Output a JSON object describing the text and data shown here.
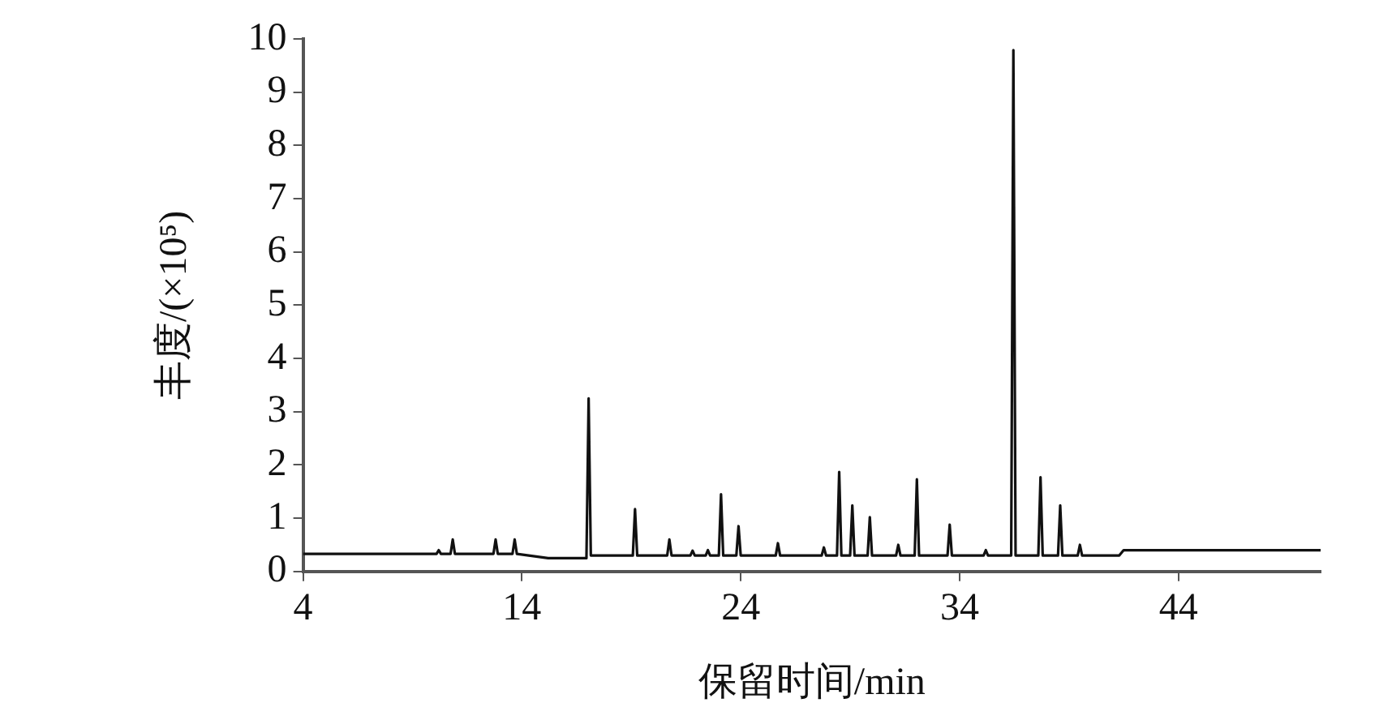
{
  "chart_data": {
    "type": "line",
    "xlabel": "保留时间/min",
    "ylabel": "丰度/(×10⁵)",
    "series": [
      {
        "color": "#111111",
        "x": [
          4,
          10.1,
          10.2,
          10.3,
          10.74,
          10.84,
          10.94,
          12.7,
          12.8,
          12.9,
          13.57,
          13.67,
          13.77,
          15.2,
          16.95,
          17.05,
          17.15,
          19.07,
          19.17,
          19.27,
          20.64,
          20.74,
          20.84,
          21.7,
          21.8,
          21.9,
          22.4,
          22.5,
          22.6,
          23.0,
          23.1,
          23.2,
          23.8,
          23.9,
          24.0,
          25.6,
          25.7,
          25.8,
          27.7,
          27.8,
          27.9,
          28.4,
          28.5,
          28.6,
          29.0,
          29.1,
          29.2,
          29.8,
          29.9,
          30.0,
          31.1,
          31.2,
          31.3,
          31.95,
          32.05,
          32.15,
          33.45,
          33.55,
          33.65,
          35.1,
          35.2,
          35.3,
          36.36,
          36.46,
          36.56,
          37.6,
          37.7,
          37.8,
          38.5,
          38.6,
          38.7,
          39.4,
          39.5,
          39.6,
          41.3,
          41.5,
          50.5
        ],
        "values": [
          0.33,
          0.33,
          0.4,
          0.33,
          0.33,
          0.6,
          0.33,
          0.33,
          0.6,
          0.33,
          0.33,
          0.6,
          0.33,
          0.25,
          0.25,
          3.25,
          0.3,
          0.3,
          1.17,
          0.3,
          0.3,
          0.6,
          0.3,
          0.3,
          0.39,
          0.3,
          0.3,
          0.4,
          0.3,
          0.3,
          1.45,
          0.3,
          0.3,
          0.85,
          0.3,
          0.3,
          0.53,
          0.3,
          0.3,
          0.45,
          0.3,
          0.3,
          1.87,
          0.3,
          0.3,
          1.24,
          0.3,
          0.3,
          1.02,
          0.3,
          0.3,
          0.5,
          0.3,
          0.3,
          1.73,
          0.3,
          0.3,
          0.88,
          0.3,
          0.3,
          0.4,
          0.3,
          0.3,
          9.79,
          0.3,
          0.3,
          1.77,
          0.3,
          0.3,
          1.24,
          0.3,
          0.3,
          0.5,
          0.3,
          0.3,
          0.4,
          0.4
        ]
      }
    ],
    "xlim": [
      4,
      50.5
    ],
    "xticks": [
      4,
      14,
      24,
      34,
      44
    ],
    "ylim": [
      0,
      10
    ],
    "yticks": [
      0,
      1,
      2,
      3,
      4,
      5,
      6,
      7,
      8,
      9,
      10
    ],
    "grid": false,
    "legend": false,
    "marker": "none",
    "line_style": "solid"
  }
}
